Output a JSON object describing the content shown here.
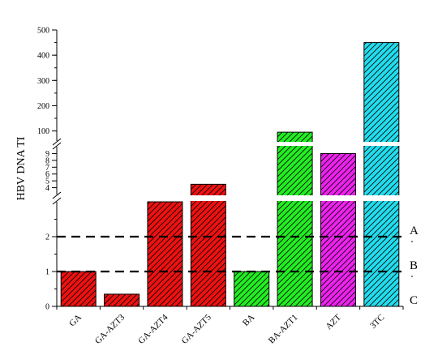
{
  "chart_data": {
    "type": "bar",
    "title": "",
    "ylabel": "HBV DNA TI",
    "xlabel": "",
    "categories": [
      "GA",
      "GA-AZT3",
      "GA-AZT4",
      "GA-AZT5",
      "BA",
      "BA-AZT1",
      "AZT",
      "3TC"
    ],
    "values": [
      1.0,
      0.35,
      3.0,
      4.5,
      1.0,
      95,
      9.0,
      450
    ],
    "bar_colors": [
      "#ee1111",
      "#ee1111",
      "#ee1111",
      "#ee1111",
      "#22ee22",
      "#22ee22",
      "#ee22ee",
      "#22ddee"
    ],
    "hatch": "diagonal",
    "broken_axis": true,
    "y_segments": [
      {
        "range": [
          0,
          3
        ],
        "ticks": [
          0,
          1,
          2
        ]
      },
      {
        "range": [
          3,
          10
        ],
        "ticks": [
          4,
          5,
          6,
          7,
          8,
          9
        ]
      },
      {
        "range": [
          60,
          500
        ],
        "ticks": [
          100,
          200,
          300,
          400,
          500
        ]
      }
    ],
    "reference_lines": [
      {
        "label": "A",
        "value": 2
      },
      {
        "label": "B",
        "value": 1
      }
    ],
    "extra_labels": [
      "C"
    ]
  }
}
